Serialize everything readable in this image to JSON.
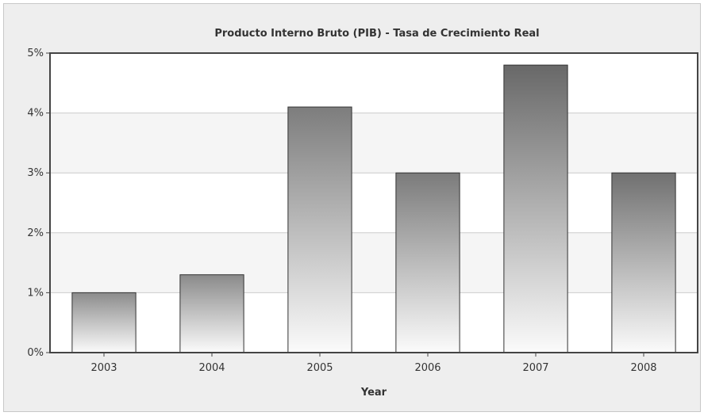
{
  "chart_data": {
    "type": "bar",
    "title": "Producto Interno Bruto (PIB) - Tasa de Crecimiento Real",
    "xlabel": "Year",
    "ylabel": "",
    "categories": [
      "2003",
      "2004",
      "2005",
      "2006",
      "2007",
      "2008"
    ],
    "values": [
      1.0,
      1.3,
      4.1,
      3.0,
      4.8,
      3.0
    ],
    "ylim": [
      0,
      5
    ],
    "yticks": [
      0,
      1,
      2,
      3,
      4,
      5
    ],
    "ytick_labels": [
      "0%",
      "1%",
      "2%",
      "3%",
      "4%",
      "5%"
    ],
    "grid": true,
    "legend": "none",
    "colors": {
      "panel_bg": "#eeeeee",
      "plot_bg": "#ffffff",
      "plot_band": "#f5f5f5",
      "grid": "#cccccc",
      "axis": "#444444",
      "bar_top": "#8c8c8c",
      "bar_bottom": "#fbfbfb",
      "bar_edge": "#333333",
      "text": "#333333"
    }
  }
}
